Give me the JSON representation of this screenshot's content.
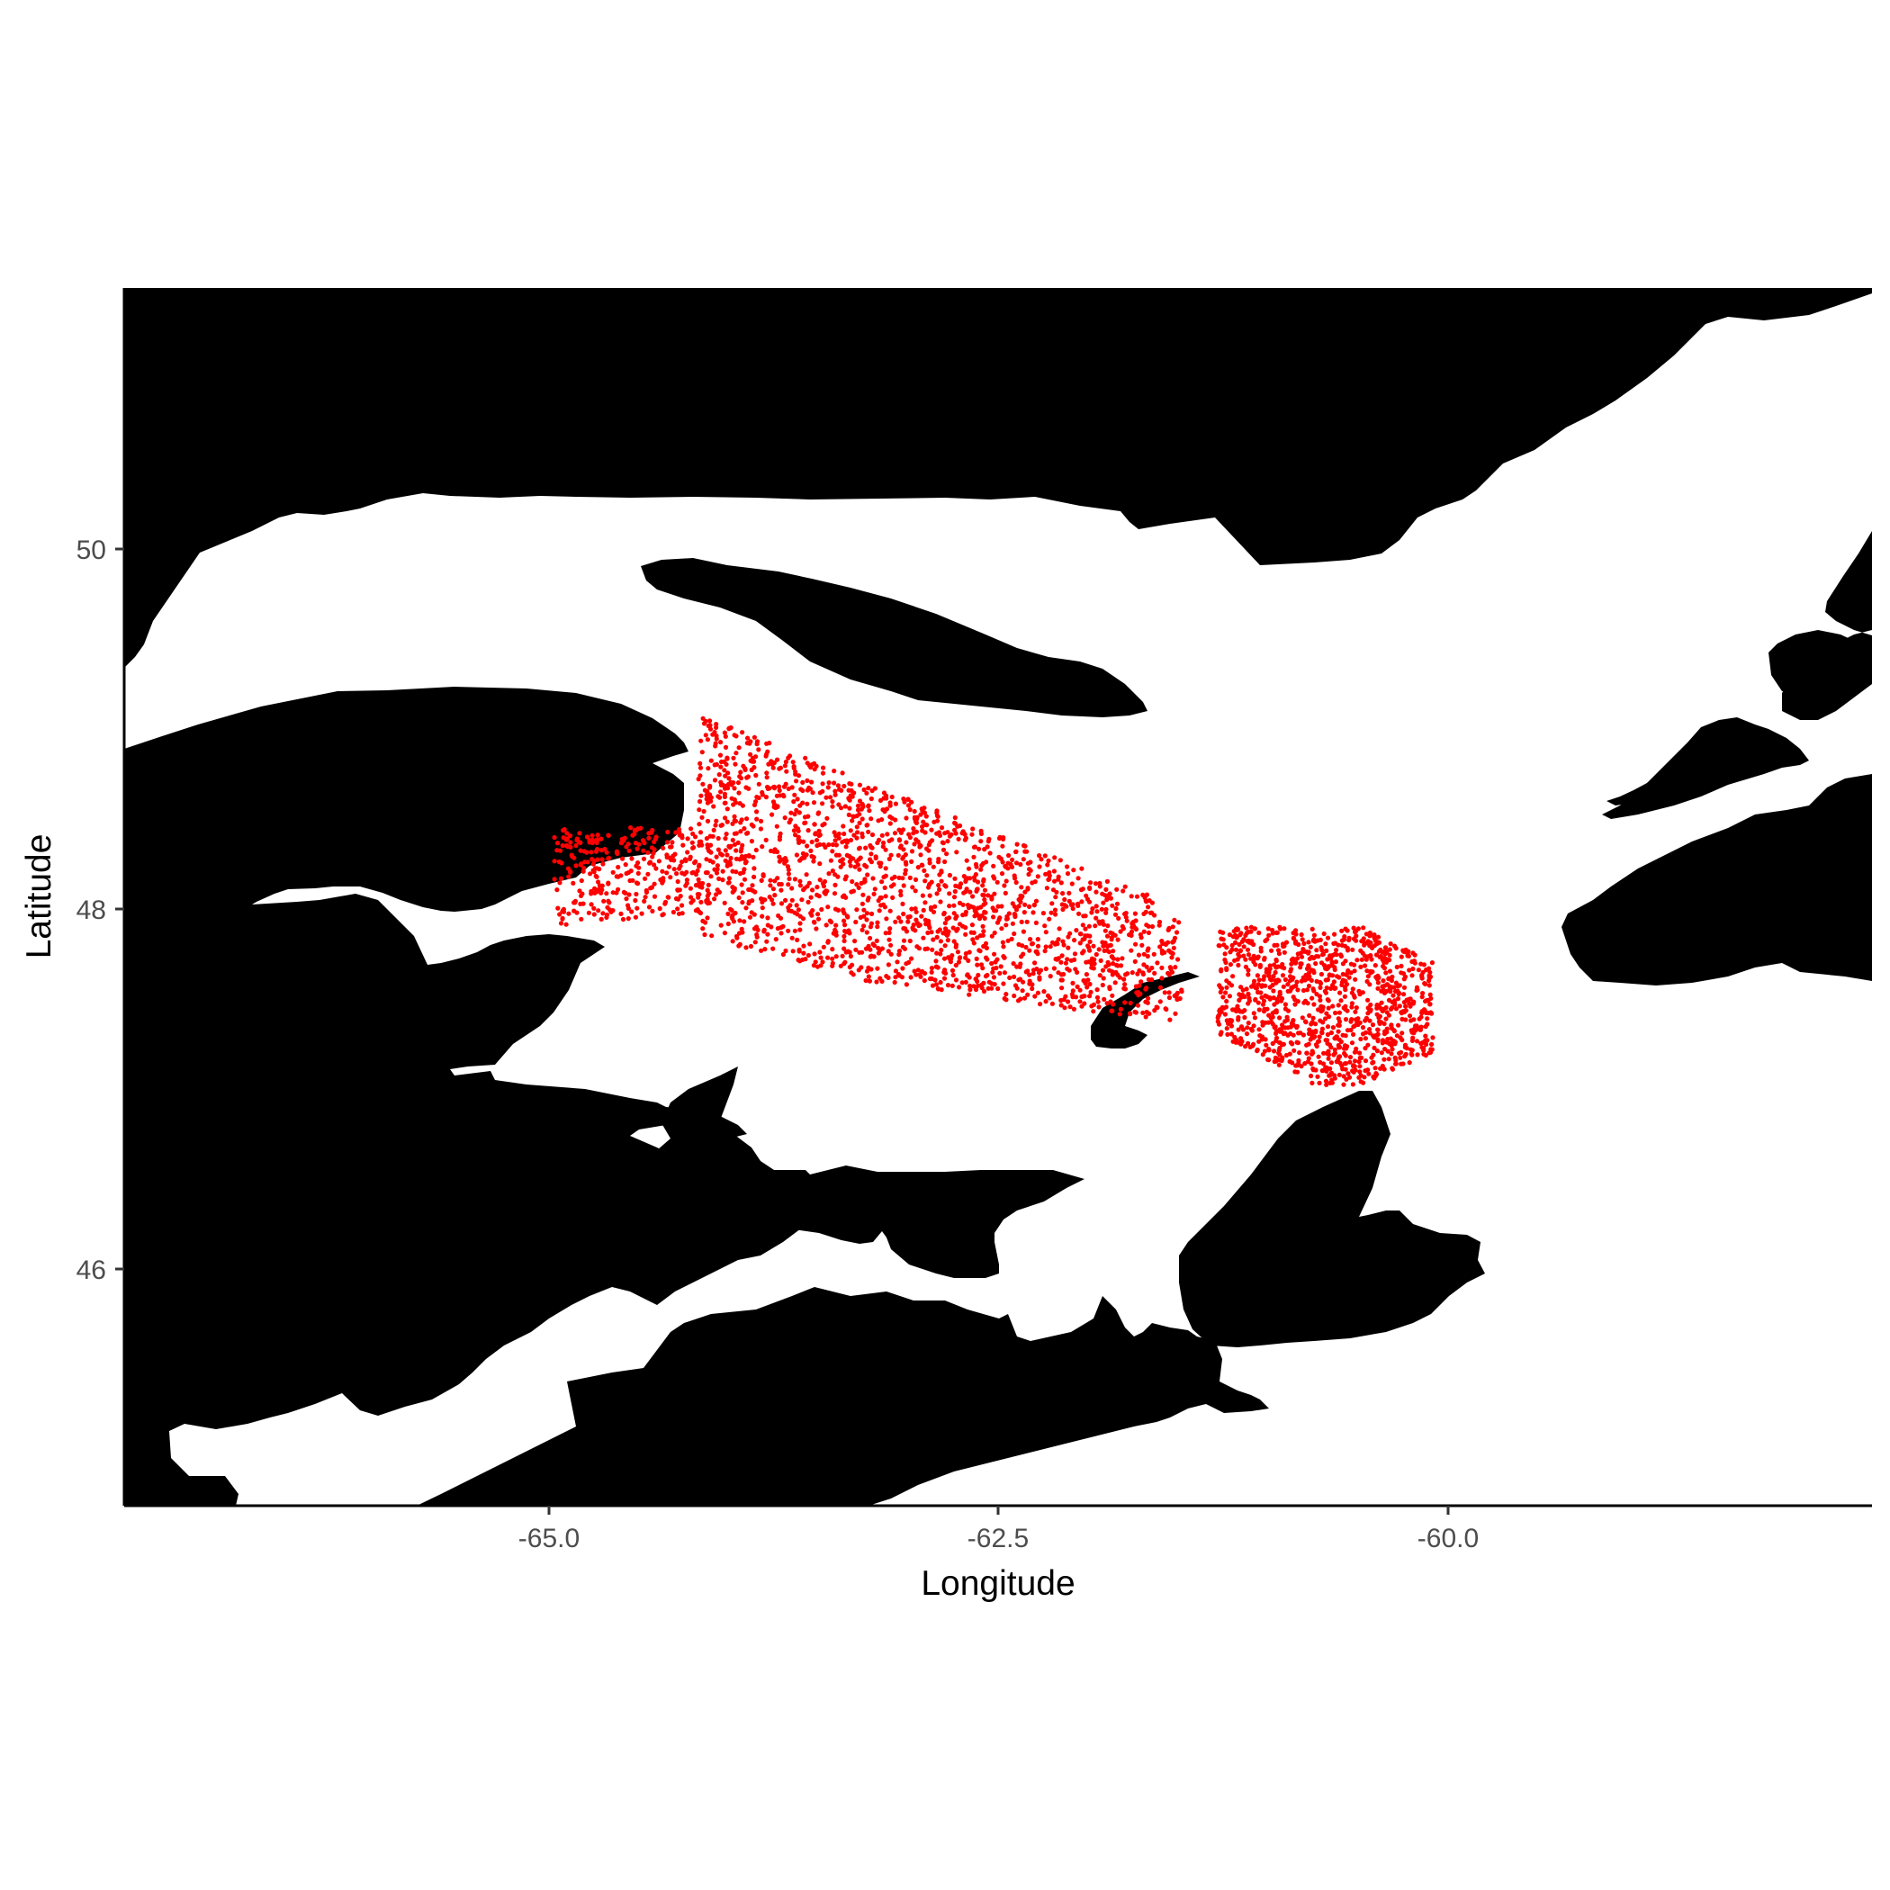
{
  "chart_data": {
    "type": "scatter",
    "title": "",
    "xlabel": "Longitude",
    "ylabel": "Latitude",
    "xlim": [
      -67.4,
      -57.65
    ],
    "ylim": [
      44.68,
      51.45
    ],
    "x_ticks": [
      "-65.0",
      "-62.5",
      "-60.0"
    ],
    "y_ticks": [
      "46",
      "48",
      "50"
    ],
    "grid": false,
    "legend": "none",
    "point_color": "#ff0000",
    "land_color": "#000000",
    "background_color": "#ffffff",
    "series": [
      {
        "clusters": [
          {
            "lon_range": [
              -65.0,
              -61.5
            ],
            "lat_range": [
              47.35,
              49.15
            ],
            "approx_points": 2200
          },
          {
            "lon_range": [
              -61.3,
              -60.1
            ],
            "lat_range": [
              47.0,
              47.9
            ],
            "approx_points": 1100
          }
        ]
      }
    ]
  }
}
